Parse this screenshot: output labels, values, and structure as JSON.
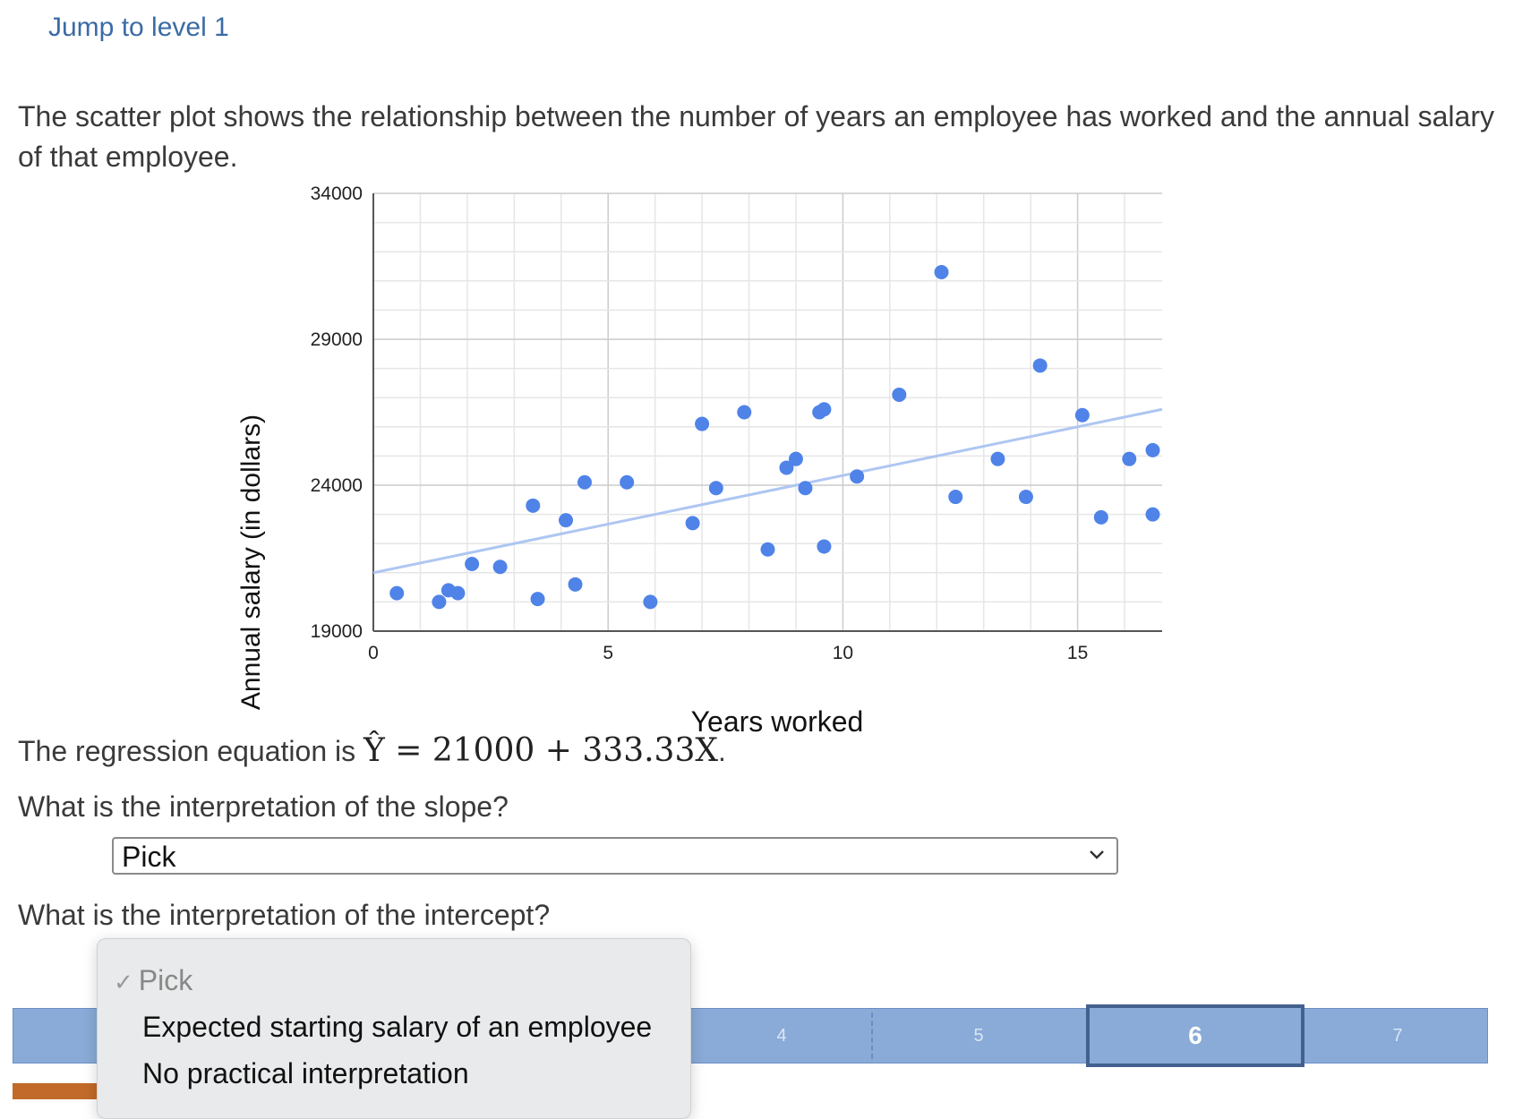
{
  "jump_link": "Jump to level 1",
  "intro": "The scatter plot shows the relationship between the number of years an employee has worked and the annual salary of that employee.",
  "regression": {
    "prefix": "The regression equation is",
    "equation": "Ŷ = 21000 + 333.33X",
    "suffix": "."
  },
  "questions": {
    "slope": "What is the interpretation of the slope?",
    "intercept": "What is the interpretation of the intercept?"
  },
  "slope_select": {
    "value": "Pick"
  },
  "intercept_dropdown": {
    "options": [
      {
        "label": "Pick",
        "selected": true
      },
      {
        "label": "Expected starting salary of an employee",
        "selected": false
      },
      {
        "label": "No practical interpretation",
        "selected": false
      }
    ]
  },
  "levels": [
    "4",
    "5",
    "6",
    "7"
  ],
  "active_level": "6",
  "colors": {
    "point": "#4f83e8",
    "trend": "#aec6f2",
    "level_bar": "#8aabd8",
    "active_border": "#43608e",
    "link": "#3b6ba5"
  },
  "chart_data": {
    "type": "scatter",
    "xlabel": "Years worked",
    "ylabel": "Annual salary (in dollars)",
    "xlim": [
      0,
      16.8
    ],
    "ylim": [
      19000,
      34000
    ],
    "x_ticks": [
      0,
      5,
      10,
      15
    ],
    "y_ticks": [
      19000,
      24000,
      29000,
      34000
    ],
    "grid": true,
    "trendline": {
      "intercept": 21000,
      "slope": 333.33
    },
    "points": [
      {
        "x": 0.5,
        "y": 20300
      },
      {
        "x": 1.4,
        "y": 20000
      },
      {
        "x": 1.6,
        "y": 20400
      },
      {
        "x": 1.8,
        "y": 20300
      },
      {
        "x": 2.1,
        "y": 21300
      },
      {
        "x": 2.7,
        "y": 21200
      },
      {
        "x": 3.4,
        "y": 23300
      },
      {
        "x": 3.5,
        "y": 20100
      },
      {
        "x": 4.1,
        "y": 22800
      },
      {
        "x": 4.3,
        "y": 20600
      },
      {
        "x": 4.5,
        "y": 24100
      },
      {
        "x": 5.4,
        "y": 24100
      },
      {
        "x": 5.9,
        "y": 20000
      },
      {
        "x": 6.8,
        "y": 22700
      },
      {
        "x": 7.0,
        "y": 26100
      },
      {
        "x": 7.3,
        "y": 23900
      },
      {
        "x": 7.9,
        "y": 26500
      },
      {
        "x": 8.4,
        "y": 21800
      },
      {
        "x": 8.8,
        "y": 24600
      },
      {
        "x": 9.0,
        "y": 24900
      },
      {
        "x": 9.2,
        "y": 23900
      },
      {
        "x": 9.5,
        "y": 26500
      },
      {
        "x": 9.6,
        "y": 26600
      },
      {
        "x": 9.6,
        "y": 21900
      },
      {
        "x": 10.3,
        "y": 24300
      },
      {
        "x": 11.2,
        "y": 27100
      },
      {
        "x": 12.1,
        "y": 31300
      },
      {
        "x": 12.4,
        "y": 23600
      },
      {
        "x": 13.3,
        "y": 24900
      },
      {
        "x": 13.9,
        "y": 23600
      },
      {
        "x": 14.2,
        "y": 28100
      },
      {
        "x": 15.1,
        "y": 26400
      },
      {
        "x": 15.5,
        "y": 22900
      },
      {
        "x": 16.1,
        "y": 24900
      },
      {
        "x": 16.6,
        "y": 23000
      },
      {
        "x": 16.6,
        "y": 25200
      }
    ]
  }
}
